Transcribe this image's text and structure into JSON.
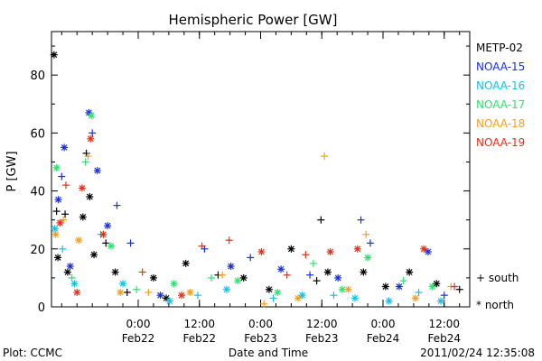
{
  "chart_data": {
    "type": "scatter",
    "title": "Hemispheric Power [GW]",
    "xlabel": "Date and Time",
    "ylabel": "P [GW]",
    "ylim": [
      0,
      95
    ],
    "xlim": [
      "2011-02-21T07:00",
      "2011-02-24T17:00"
    ],
    "y_ticks": [
      0,
      20,
      40,
      60,
      80
    ],
    "x_ticks": [
      {
        "time": "2011-02-22T00:00",
        "label": "0:00",
        "sublabel": "Feb22"
      },
      {
        "time": "2011-02-22T12:00",
        "label": "12:00",
        "sublabel": "Feb22"
      },
      {
        "time": "2011-02-23T00:00",
        "label": "0:00",
        "sublabel": "Feb23"
      },
      {
        "time": "2011-02-23T12:00",
        "label": "12:00",
        "sublabel": "Feb23"
      },
      {
        "time": "2011-02-24T00:00",
        "label": "0:00",
        "sublabel": "Feb24"
      },
      {
        "time": "2011-02-24T12:00",
        "label": "12:00",
        "sublabel": "Feb24"
      }
    ],
    "marker_legend": [
      {
        "symbol": "+",
        "label": "south"
      },
      {
        "symbol": "*",
        "label": "north"
      }
    ],
    "series": [
      {
        "name": "METP-02",
        "color": "#000000",
        "points": [
          {
            "x": "2011-02-21T07:30",
            "y": 87,
            "marker": "*"
          },
          {
            "x": "2011-02-21T08:00",
            "y": 33,
            "marker": "+"
          },
          {
            "x": "2011-02-21T08:15",
            "y": 17,
            "marker": "*"
          },
          {
            "x": "2011-02-21T09:40",
            "y": 32,
            "marker": "+"
          },
          {
            "x": "2011-02-21T10:10",
            "y": 12,
            "marker": "*"
          },
          {
            "x": "2011-02-21T13:10",
            "y": 31,
            "marker": "*"
          },
          {
            "x": "2011-02-21T13:50",
            "y": 53,
            "marker": "+"
          },
          {
            "x": "2011-02-21T14:30",
            "y": 38,
            "marker": "*"
          },
          {
            "x": "2011-02-21T15:20",
            "y": 18,
            "marker": "*"
          },
          {
            "x": "2011-02-21T17:40",
            "y": 22,
            "marker": "+"
          },
          {
            "x": "2011-02-21T19:30",
            "y": 12,
            "marker": "*"
          },
          {
            "x": "2011-02-21T21:50",
            "y": 5,
            "marker": "+"
          },
          {
            "x": "2011-02-22T03:00",
            "y": 10,
            "marker": "*"
          },
          {
            "x": "2011-02-22T05:30",
            "y": 3,
            "marker": "*"
          },
          {
            "x": "2011-02-22T09:20",
            "y": 15,
            "marker": "*"
          },
          {
            "x": "2011-02-22T15:40",
            "y": 11,
            "marker": "+"
          },
          {
            "x": "2011-02-22T20:40",
            "y": 10,
            "marker": "*"
          },
          {
            "x": "2011-02-23T01:40",
            "y": 6,
            "marker": "*"
          },
          {
            "x": "2011-02-23T06:00",
            "y": 20,
            "marker": "*"
          },
          {
            "x": "2011-02-23T11:00",
            "y": 9,
            "marker": "+"
          },
          {
            "x": "2011-02-23T11:50",
            "y": 30,
            "marker": "+"
          },
          {
            "x": "2011-02-23T13:10",
            "y": 12,
            "marker": "*"
          },
          {
            "x": "2011-02-23T20:10",
            "y": 12,
            "marker": "*"
          },
          {
            "x": "2011-02-24T00:30",
            "y": 7,
            "marker": "*"
          },
          {
            "x": "2011-02-24T05:10",
            "y": 12,
            "marker": "*"
          },
          {
            "x": "2011-02-24T10:30",
            "y": 8,
            "marker": "*"
          },
          {
            "x": "2011-02-24T15:00",
            "y": 6,
            "marker": "+"
          }
        ]
      },
      {
        "name": "NOAA-15",
        "color": "#1a2ee0",
        "points": [
          {
            "x": "2011-02-21T08:20",
            "y": 37,
            "marker": "*"
          },
          {
            "x": "2011-02-21T09:00",
            "y": 45,
            "marker": "+"
          },
          {
            "x": "2011-02-21T09:30",
            "y": 55,
            "marker": "*"
          },
          {
            "x": "2011-02-21T10:40",
            "y": 14,
            "marker": "*"
          },
          {
            "x": "2011-02-21T14:20",
            "y": 67,
            "marker": "*"
          },
          {
            "x": "2011-02-21T15:00",
            "y": 60,
            "marker": "+"
          },
          {
            "x": "2011-02-21T16:00",
            "y": 47,
            "marker": "*"
          },
          {
            "x": "2011-02-21T18:00",
            "y": 28,
            "marker": "*"
          },
          {
            "x": "2011-02-21T19:50",
            "y": 35,
            "marker": "+"
          },
          {
            "x": "2011-02-21T22:30",
            "y": 22,
            "marker": "+"
          },
          {
            "x": "2011-02-22T04:20",
            "y": 4,
            "marker": "*"
          },
          {
            "x": "2011-02-22T13:00",
            "y": 20,
            "marker": "+"
          },
          {
            "x": "2011-02-22T18:10",
            "y": 14,
            "marker": "*"
          },
          {
            "x": "2011-02-22T22:00",
            "y": 17,
            "marker": "+"
          },
          {
            "x": "2011-02-23T04:00",
            "y": 13,
            "marker": "*"
          },
          {
            "x": "2011-02-23T09:40",
            "y": 11,
            "marker": "+"
          },
          {
            "x": "2011-02-23T15:10",
            "y": 10,
            "marker": "*"
          },
          {
            "x": "2011-02-23T19:40",
            "y": 30,
            "marker": "+"
          },
          {
            "x": "2011-02-23T21:30",
            "y": 22,
            "marker": "+"
          },
          {
            "x": "2011-02-24T03:10",
            "y": 7,
            "marker": "*"
          },
          {
            "x": "2011-02-24T08:50",
            "y": 19,
            "marker": "*"
          },
          {
            "x": "2011-02-24T12:00",
            "y": 4,
            "marker": "+"
          }
        ]
      },
      {
        "name": "NOAA-16",
        "color": "#17c0e0",
        "points": [
          {
            "x": "2011-02-21T07:40",
            "y": 27,
            "marker": "*"
          },
          {
            "x": "2011-02-21T09:10",
            "y": 20,
            "marker": "+"
          },
          {
            "x": "2011-02-21T11:30",
            "y": 8,
            "marker": "*"
          },
          {
            "x": "2011-02-21T16:40",
            "y": 25,
            "marker": "+"
          },
          {
            "x": "2011-02-21T21:00",
            "y": 8,
            "marker": "*"
          },
          {
            "x": "2011-02-22T06:10",
            "y": 2,
            "marker": "*"
          },
          {
            "x": "2011-02-22T11:40",
            "y": 4,
            "marker": "+"
          },
          {
            "x": "2011-02-22T17:20",
            "y": 6,
            "marker": "*"
          },
          {
            "x": "2011-02-23T02:30",
            "y": 3,
            "marker": "+"
          },
          {
            "x": "2011-02-23T08:10",
            "y": 4,
            "marker": "*"
          },
          {
            "x": "2011-02-23T14:20",
            "y": 4,
            "marker": "+"
          },
          {
            "x": "2011-02-23T18:30",
            "y": 3,
            "marker": "*"
          },
          {
            "x": "2011-02-24T01:10",
            "y": 2,
            "marker": "*"
          },
          {
            "x": "2011-02-24T07:00",
            "y": 5,
            "marker": "+"
          },
          {
            "x": "2011-02-24T11:20",
            "y": 2,
            "marker": "*"
          }
        ]
      },
      {
        "name": "NOAA-17",
        "color": "#2ee070",
        "points": [
          {
            "x": "2011-02-21T08:00",
            "y": 48,
            "marker": "*"
          },
          {
            "x": "2011-02-21T11:00",
            "y": 10,
            "marker": "+"
          },
          {
            "x": "2011-02-21T13:40",
            "y": 50,
            "marker": "+"
          },
          {
            "x": "2011-02-21T14:50",
            "y": 66,
            "marker": "*"
          },
          {
            "x": "2011-02-21T18:40",
            "y": 21,
            "marker": "*"
          },
          {
            "x": "2011-02-21T23:40",
            "y": 6,
            "marker": "+"
          },
          {
            "x": "2011-02-22T07:00",
            "y": 8,
            "marker": "*"
          },
          {
            "x": "2011-02-22T14:20",
            "y": 10,
            "marker": "+"
          },
          {
            "x": "2011-02-22T19:30",
            "y": 9,
            "marker": "*"
          },
          {
            "x": "2011-02-23T03:20",
            "y": 5,
            "marker": "*"
          },
          {
            "x": "2011-02-23T10:20",
            "y": 15,
            "marker": "+"
          },
          {
            "x": "2011-02-23T16:00",
            "y": 6,
            "marker": "*"
          },
          {
            "x": "2011-02-23T21:00",
            "y": 17,
            "marker": "*"
          },
          {
            "x": "2011-02-24T04:00",
            "y": 9,
            "marker": "+"
          },
          {
            "x": "2011-02-24T09:40",
            "y": 7,
            "marker": "*"
          }
        ]
      },
      {
        "name": "NOAA-18",
        "color": "#f0a020",
        "points": [
          {
            "x": "2011-02-21T07:50",
            "y": 25,
            "marker": "*"
          },
          {
            "x": "2011-02-21T09:20",
            "y": 30,
            "marker": "+"
          },
          {
            "x": "2011-02-21T12:20",
            "y": 23,
            "marker": "*"
          },
          {
            "x": "2011-02-21T14:10",
            "y": 52,
            "marker": "+"
          },
          {
            "x": "2011-02-21T20:30",
            "y": 5,
            "marker": "*"
          },
          {
            "x": "2011-02-22T02:00",
            "y": 5,
            "marker": "+"
          },
          {
            "x": "2011-02-22T10:10",
            "y": 5,
            "marker": "*"
          },
          {
            "x": "2011-02-22T16:30",
            "y": 11,
            "marker": "+"
          },
          {
            "x": "2011-02-23T00:40",
            "y": 1,
            "marker": "+"
          },
          {
            "x": "2011-02-23T07:20",
            "y": 3,
            "marker": "*"
          },
          {
            "x": "2011-02-23T12:30",
            "y": 52,
            "marker": "+"
          },
          {
            "x": "2011-02-23T17:10",
            "y": 6,
            "marker": "*"
          },
          {
            "x": "2011-02-23T20:40",
            "y": 25,
            "marker": "+"
          },
          {
            "x": "2011-02-24T06:20",
            "y": 3,
            "marker": "*"
          },
          {
            "x": "2011-02-24T13:20",
            "y": 7,
            "marker": "+"
          }
        ]
      },
      {
        "name": "NOAA-19",
        "color": "#e03018",
        "points": [
          {
            "x": "2011-02-21T08:40",
            "y": 29,
            "marker": "*"
          },
          {
            "x": "2011-02-21T09:50",
            "y": 42,
            "marker": "+"
          },
          {
            "x": "2011-02-21T12:00",
            "y": 5,
            "marker": "*"
          },
          {
            "x": "2011-02-21T13:00",
            "y": 41,
            "marker": "*"
          },
          {
            "x": "2011-02-21T14:40",
            "y": 58,
            "marker": "*"
          },
          {
            "x": "2011-02-21T17:10",
            "y": 25,
            "marker": "*"
          },
          {
            "x": "2011-02-22T00:50",
            "y": 12,
            "marker": "+"
          },
          {
            "x": "2011-02-22T08:30",
            "y": 4,
            "marker": "*"
          },
          {
            "x": "2011-02-22T12:30",
            "y": 21,
            "marker": "+"
          },
          {
            "x": "2011-02-22T17:50",
            "y": 23,
            "marker": "+"
          },
          {
            "x": "2011-02-23T00:10",
            "y": 19,
            "marker": "*"
          },
          {
            "x": "2011-02-23T05:10",
            "y": 11,
            "marker": "+"
          },
          {
            "x": "2011-02-23T08:50",
            "y": 18,
            "marker": "+"
          },
          {
            "x": "2011-02-23T13:40",
            "y": 19,
            "marker": "*"
          },
          {
            "x": "2011-02-23T19:00",
            "y": 20,
            "marker": "*"
          },
          {
            "x": "2011-02-24T08:00",
            "y": 20,
            "marker": "*"
          },
          {
            "x": "2011-02-24T14:00",
            "y": 7,
            "marker": "+"
          }
        ]
      }
    ]
  },
  "footer": {
    "left": "Plot: CCMC",
    "center": "Date and Time",
    "right": "2011/02/24 12:35:08"
  }
}
